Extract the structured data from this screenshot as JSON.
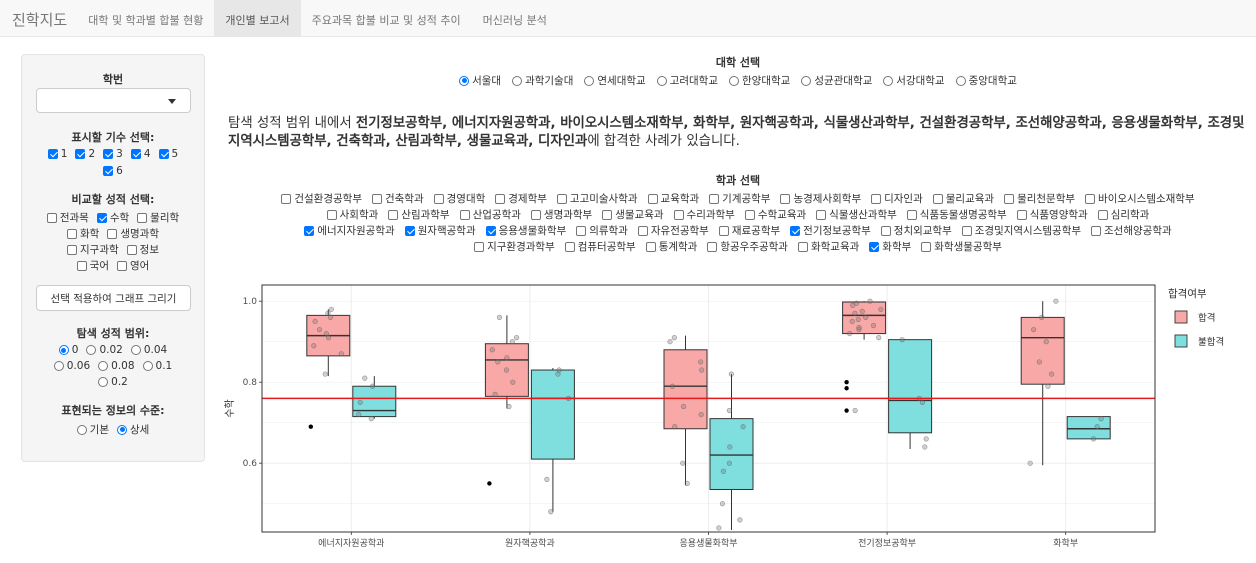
{
  "navbar": {
    "brand": "진학지도",
    "tabs": [
      {
        "label": "대학 및 학과별 합불 현황",
        "active": false
      },
      {
        "label": "개인별 보고서",
        "active": true
      },
      {
        "label": "주요과목 합불 비교 및 성적 추이",
        "active": false
      },
      {
        "label": "머신러닝 분석",
        "active": false
      }
    ]
  },
  "sidebar": {
    "student_id_label": "학번",
    "student_id_value": "",
    "cohort_label": "표시할 기수 선택:",
    "cohorts": [
      {
        "label": "1",
        "checked": true
      },
      {
        "label": "2",
        "checked": true
      },
      {
        "label": "3",
        "checked": true
      },
      {
        "label": "4",
        "checked": true
      },
      {
        "label": "5",
        "checked": true
      },
      {
        "label": "6",
        "checked": true
      }
    ],
    "compare_label": "비교할 성적 선택:",
    "subjects": [
      {
        "label": "전과목",
        "checked": false
      },
      {
        "label": "수학",
        "checked": true
      },
      {
        "label": "물리학",
        "checked": false
      },
      {
        "label": "화학",
        "checked": false
      },
      {
        "label": "생명과학",
        "checked": false
      },
      {
        "label": "지구과학",
        "checked": false
      },
      {
        "label": "정보",
        "checked": false
      },
      {
        "label": "국어",
        "checked": false
      },
      {
        "label": "영어",
        "checked": false
      }
    ],
    "apply_button": "선택 적용하여 그래프 그리기",
    "range_label": "탐색 성적 범위:",
    "ranges": [
      {
        "label": "0",
        "checked": true
      },
      {
        "label": "0.02",
        "checked": false
      },
      {
        "label": "0.04",
        "checked": false
      },
      {
        "label": "0.06",
        "checked": false
      },
      {
        "label": "0.08",
        "checked": false
      },
      {
        "label": "0.1",
        "checked": false
      },
      {
        "label": "0.2",
        "checked": false
      }
    ],
    "detail_label": "표현되는 정보의 수준:",
    "details": [
      {
        "label": "기본",
        "checked": false
      },
      {
        "label": "상세",
        "checked": true
      }
    ]
  },
  "main": {
    "uni_label": "대학 선택",
    "universities": [
      {
        "label": "서울대",
        "checked": true
      },
      {
        "label": "과학기술대",
        "checked": false
      },
      {
        "label": "연세대학교",
        "checked": false
      },
      {
        "label": "고려대학교",
        "checked": false
      },
      {
        "label": "한양대학교",
        "checked": false
      },
      {
        "label": "성균관대학교",
        "checked": false
      },
      {
        "label": "서강대학교",
        "checked": false
      },
      {
        "label": "중앙대학교",
        "checked": false
      }
    ],
    "result_prefix": "탐색 성적 범위 내에서 ",
    "result_depts": "전기정보공학부, 에너지자원공학과, 바이오시스템소재학부, 화학부, 원자핵공학과, 식물생산과학부, 건설환경공학부, 조선해양공학과, 응용생물화학부, 조경및지역시스템공학부, 건축학과, 산림과학부, 생물교육과, 디자인과",
    "result_suffix": "에 합격한 사례가 있습니다.",
    "dept_label": "학과 선택",
    "dept_rows": [
      [
        {
          "label": "건설환경공학부",
          "checked": false
        },
        {
          "label": "건축학과",
          "checked": false
        },
        {
          "label": "경영대학",
          "checked": false
        },
        {
          "label": "경제학부",
          "checked": false
        },
        {
          "label": "고고미술사학과",
          "checked": false
        },
        {
          "label": "교육학과",
          "checked": false
        },
        {
          "label": "기계공학부",
          "checked": false
        },
        {
          "label": "농경제사회학부",
          "checked": false
        },
        {
          "label": "디자인과",
          "checked": false
        },
        {
          "label": "물리교육과",
          "checked": false
        },
        {
          "label": "물리천문학부",
          "checked": false
        },
        {
          "label": "바이오시스템소재학부",
          "checked": false
        }
      ],
      [
        {
          "label": "사회학과",
          "checked": false
        },
        {
          "label": "산림과학부",
          "checked": false
        },
        {
          "label": "산업공학과",
          "checked": false
        },
        {
          "label": "생명과학부",
          "checked": false
        },
        {
          "label": "생물교육과",
          "checked": false
        },
        {
          "label": "수리과학부",
          "checked": false
        },
        {
          "label": "수학교육과",
          "checked": false
        },
        {
          "label": "식물생산과학부",
          "checked": false
        },
        {
          "label": "식품동물생명공학부",
          "checked": false
        },
        {
          "label": "식품영양학과",
          "checked": false
        },
        {
          "label": "심리학과",
          "checked": false
        }
      ],
      [
        {
          "label": "에너지자원공학과",
          "checked": true
        },
        {
          "label": "원자핵공학과",
          "checked": true
        },
        {
          "label": "응용생물화학부",
          "checked": true
        },
        {
          "label": "의류학과",
          "checked": false
        },
        {
          "label": "자유전공학부",
          "checked": false
        },
        {
          "label": "재료공학부",
          "checked": false
        },
        {
          "label": "전기정보공학부",
          "checked": true
        },
        {
          "label": "정치외교학부",
          "checked": false
        },
        {
          "label": "조경및지역시스템공학부",
          "checked": false
        },
        {
          "label": "조선해양공학과",
          "checked": false
        }
      ],
      [
        {
          "label": "지구환경과학부",
          "checked": false
        },
        {
          "label": "컴퓨터공학부",
          "checked": false
        },
        {
          "label": "통계학과",
          "checked": false
        },
        {
          "label": "항공우주공학과",
          "checked": false
        },
        {
          "label": "화학교육과",
          "checked": false
        },
        {
          "label": "화학부",
          "checked": true
        },
        {
          "label": "화학생물공학부",
          "checked": false
        }
      ]
    ]
  },
  "chart_data": {
    "type": "boxplot",
    "ylabel": "수학",
    "ylim": [
      0.43,
      1.04
    ],
    "yticks": [
      0.6,
      0.8,
      1.0
    ],
    "tick_labels": [
      "0.6",
      "0.8",
      "1.0"
    ],
    "reference_line": 0.76,
    "reference_color": "#e41a1c",
    "categories": [
      "에너지자원공학과",
      "원자핵공학과",
      "응용생물화학부",
      "전기정보공학부",
      "화학부"
    ],
    "legend": {
      "title": "합격여부",
      "placement": "right",
      "entries": [
        {
          "label": "합격",
          "color": "#f8a8a6"
        },
        {
          "label": "불합격",
          "color": "#7fdede"
        }
      ]
    },
    "series": [
      {
        "name": "합격",
        "color": "#f8a8a6",
        "boxes": [
          {
            "min": 0.815,
            "q1": 0.865,
            "median": 0.915,
            "q3": 0.965,
            "max": 0.98,
            "outliers": [
              0.69
            ],
            "points": [
              0.97,
              0.96,
              0.95,
              0.93,
              0.92,
              0.91,
              0.89,
              0.87,
              0.98,
              0.82
            ]
          },
          {
            "min": 0.735,
            "q1": 0.765,
            "median": 0.855,
            "q3": 0.895,
            "max": 0.965,
            "outliers": [
              0.55
            ],
            "points": [
              0.96,
              0.91,
              0.9,
              0.88,
              0.86,
              0.85,
              0.8,
              0.77,
              0.74,
              0.83
            ]
          },
          {
            "min": 0.545,
            "q1": 0.685,
            "median": 0.79,
            "q3": 0.88,
            "max": 0.915,
            "outliers": [],
            "points": [
              0.91,
              0.9,
              0.85,
              0.83,
              0.79,
              0.74,
              0.72,
              0.69,
              0.6,
              0.55
            ]
          },
          {
            "min": 0.905,
            "q1": 0.92,
            "median": 0.965,
            "q3": 0.998,
            "max": 1.0,
            "outliers": [
              0.8,
              0.785,
              0.73
            ],
            "points": [
              1.0,
              0.995,
              0.99,
              0.98,
              0.975,
              0.97,
              0.96,
              0.955,
              0.95,
              0.94,
              0.935,
              0.93,
              0.92,
              0.91,
              0.73
            ]
          },
          {
            "min": 0.595,
            "q1": 0.795,
            "median": 0.91,
            "q3": 0.96,
            "max": 1.0,
            "outliers": [],
            "points": [
              1.0,
              0.96,
              0.93,
              0.9,
              0.85,
              0.82,
              0.79,
              0.6
            ]
          }
        ]
      },
      {
        "name": "불합격",
        "color": "#7fdede",
        "boxes": [
          {
            "min": 0.71,
            "q1": 0.715,
            "median": 0.73,
            "q3": 0.79,
            "max": 0.815,
            "outliers": [],
            "points": [
              0.81,
              0.79,
              0.75,
              0.72,
              0.71
            ]
          },
          {
            "min": 0.48,
            "q1": 0.61,
            "median": 0.76,
            "q3": 0.83,
            "max": 0.835,
            "outliers": [],
            "points": [
              0.83,
              0.82,
              0.76,
              0.56,
              0.48
            ]
          },
          {
            "min": 0.435,
            "q1": 0.535,
            "median": 0.62,
            "q3": 0.71,
            "max": 0.82,
            "outliers": [],
            "points": [
              0.82,
              0.73,
              0.69,
              0.64,
              0.6,
              0.58,
              0.5,
              0.46,
              0.44
            ]
          },
          {
            "min": 0.635,
            "q1": 0.675,
            "median": 0.755,
            "q3": 0.905,
            "max": 0.905,
            "outliers": [],
            "points": [
              0.905,
              0.76,
              0.75,
              0.66,
              0.64
            ]
          },
          {
            "min": 0.66,
            "q1": 0.66,
            "median": 0.685,
            "q3": 0.715,
            "max": 0.715,
            "outliers": [],
            "points": [
              0.71,
              0.69,
              0.66
            ]
          }
        ]
      }
    ]
  }
}
